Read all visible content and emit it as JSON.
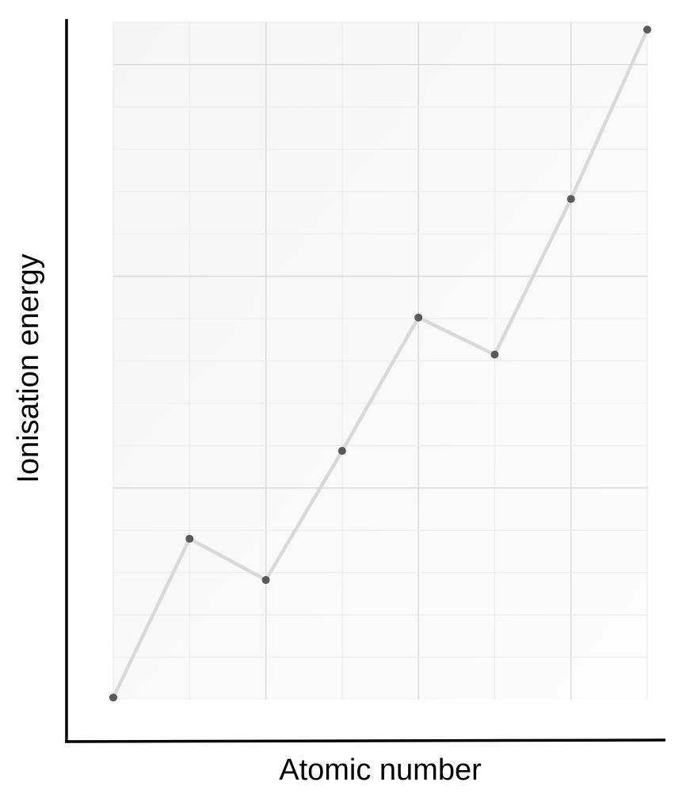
{
  "chart_data": {
    "type": "line",
    "title": "",
    "xlabel": "Atomic number",
    "ylabel": "Ionisation energy",
    "x": [
      1,
      2,
      3,
      4,
      5,
      6,
      7,
      8
    ],
    "series": [
      {
        "values": [
          0.1,
          7.6,
          5.65,
          11.75,
          18.05,
          16.3,
          23.65,
          31.65
        ]
      }
    ],
    "xlim": [
      1,
      8
    ],
    "ylim": [
      0,
      32
    ],
    "x_major_every": 2,
    "y_major_every": 10,
    "x_ticks_labeled": false,
    "y_ticks_labeled": false,
    "grid": true,
    "legend": "none",
    "colors": {
      "line": "#d9d9d9",
      "points": "#595959",
      "plot_background": "#f7f7f7",
      "grid_major": "#d9d9d9",
      "grid_minor": "#ececec",
      "axes": "#000000"
    }
  }
}
